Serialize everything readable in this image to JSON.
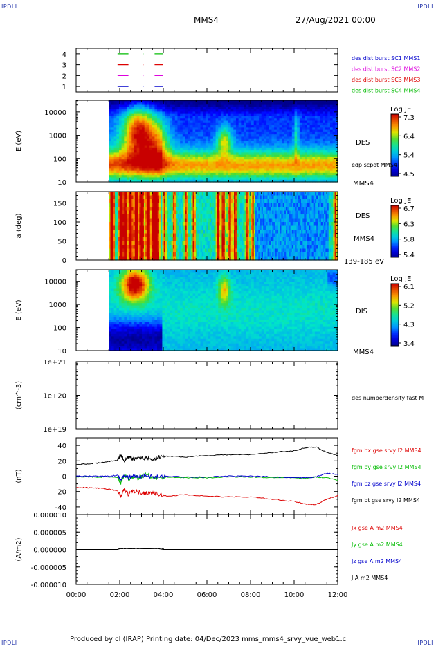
{
  "header": {
    "corner_tl": "IPDLI",
    "corner_tr": "IPDLI",
    "spacecraft": "MMS4",
    "datetime": "27/Aug/2021 00:00"
  },
  "footer": {
    "text": "Produced by cl (IRAP)   Printing date: 04/Dec/2023   mms_mms4_srvy_vue_web1.cl",
    "corner_bl": "IPDLI",
    "corner_br": "IPDLI"
  },
  "colors": {
    "red": "#dd0000",
    "green": "#00bb00",
    "blue": "#0000cc",
    "magenta": "#dd00dd",
    "black": "#000000"
  },
  "chart_data": [
    {
      "panel": "burst-availability",
      "type": "scatter",
      "yticks": [
        "1",
        "2",
        "3",
        "4"
      ],
      "ylim": [
        0.5,
        4.5
      ],
      "legend": [
        {
          "name": "des dist burst SC1 MMS1",
          "color": "#0000cc"
        },
        {
          "name": "des dist burst SC2 MMS2",
          "color": "#dd00dd"
        },
        {
          "name": "des dist burst SC3 MMS3",
          "color": "#dd0000"
        },
        {
          "name": "des dist burst SC4 MMS4",
          "color": "#00bb00"
        }
      ],
      "segments": [
        {
          "level": 4,
          "color": "#00bb00",
          "t": [
            [
              1.9,
              2.4
            ],
            [
              3.6,
              4.0
            ]
          ]
        },
        {
          "level": 3,
          "color": "#dd0000",
          "t": [
            [
              1.9,
              2.4
            ],
            [
              3.6,
              4.0
            ]
          ]
        },
        {
          "level": 2,
          "color": "#dd00dd",
          "t": [
            [
              1.9,
              2.4
            ],
            [
              3.6,
              4.0
            ]
          ]
        },
        {
          "level": 1,
          "color": "#0000cc",
          "t": [
            [
              1.9,
              2.4
            ],
            [
              3.6,
              4.0
            ]
          ]
        }
      ]
    },
    {
      "panel": "des-energy-spectrogram",
      "type": "heatmap",
      "ylabel": "E (eV)",
      "yticks": [
        "10",
        "100",
        "1000",
        "10000"
      ],
      "ylog": [
        1,
        4.5
      ],
      "data_start": 1.5,
      "right_label": "DES",
      "side_labels": [
        "edp scpot MMS4",
        "MMS4"
      ],
      "colorbar": {
        "title": "Log JE",
        "ticks": [
          "7.3",
          "6.4",
          "5.4",
          "4.5"
        ],
        "range": [
          4.5,
          7.3
        ]
      }
    },
    {
      "panel": "des-pitch-angle",
      "type": "heatmap",
      "ylabel": "a (deg)",
      "yticks": [
        "0",
        "50",
        "100",
        "150"
      ],
      "ylim": [
        0,
        180
      ],
      "data_start": 1.5,
      "right_label": "DES",
      "side_labels": [
        "MMS4",
        "139-185 eV"
      ],
      "colorbar": {
        "title": "Log JE",
        "ticks": [
          "6.7",
          "6.3",
          "5.8",
          "5.4"
        ],
        "range": [
          5.4,
          6.7
        ]
      }
    },
    {
      "panel": "dis-energy-spectrogram",
      "type": "heatmap",
      "ylabel": "E (eV)",
      "yticks": [
        "10",
        "100",
        "1000",
        "10000"
      ],
      "ylog": [
        1,
        4.5
      ],
      "data_start": 1.5,
      "right_label": "DIS",
      "side_labels": [
        "MMS4"
      ],
      "colorbar": {
        "title": "Log JE",
        "ticks": [
          "6.1",
          "5.2",
          "4.3",
          "3.4"
        ],
        "range": [
          3.4,
          6.1
        ]
      }
    },
    {
      "panel": "number-density",
      "type": "line",
      "ylabel": "(cm^-3)",
      "yticks": [
        "1e+19",
        "1e+20",
        "1e+21"
      ],
      "ylog": [
        19,
        21
      ],
      "legend": [
        {
          "name": "des numberdensity fast M",
          "color": "#000000"
        }
      ],
      "series": []
    },
    {
      "panel": "magnetic-field",
      "type": "line",
      "ylabel": "(nT)",
      "yticks": [
        "-40",
        "-20",
        "0",
        "20",
        "40"
      ],
      "ylim": [
        -50,
        50
      ],
      "legend": [
        {
          "name": "fgm bx gse srvy l2 MMS4",
          "color": "#dd0000"
        },
        {
          "name": "fgm by gse srvy l2 MMS4",
          "color": "#00bb00"
        },
        {
          "name": "fgm bz gse srvy l2 MMS4",
          "color": "#0000cc"
        },
        {
          "name": "fgm bt gse srvy l2 MMS4",
          "color": "#000000"
        }
      ],
      "x": [
        0,
        0.5,
        1,
        1.5,
        1.9,
        2.05,
        2.2,
        2.4,
        2.6,
        2.9,
        3.2,
        3.5,
        3.8,
        4.2,
        5,
        6,
        7,
        8,
        9,
        10,
        10.5,
        11,
        11.5,
        12
      ],
      "series": [
        {
          "name": "fgm bx gse srvy l2 MMS4",
          "color": "#dd0000",
          "values": [
            -15,
            -15,
            -15.5,
            -17,
            -19,
            -27,
            -17,
            -24,
            -19,
            -21,
            -22,
            -21,
            -24,
            -26,
            -24,
            -26,
            -27,
            -27,
            -30,
            -33,
            -36,
            -37,
            -30,
            -25
          ]
        },
        {
          "name": "fgm by gse srvy l2 MMS4",
          "color": "#00bb00",
          "values": [
            -1,
            -1,
            -1,
            -1,
            -2,
            -9,
            2,
            -4,
            0,
            -2,
            3,
            -2,
            -3,
            -1,
            -2,
            -2,
            -1,
            -1,
            -2,
            -2,
            -3,
            -1,
            -2,
            -5
          ]
        },
        {
          "name": "fgm bz gse srvy l2 MMS4",
          "color": "#0000cc",
          "values": [
            0,
            0,
            0,
            0,
            1,
            -5,
            1,
            -2,
            0,
            -1,
            1,
            -1,
            -1,
            0,
            -1,
            -1,
            0,
            0,
            -1,
            -2,
            -2,
            -1,
            4,
            2
          ]
        },
        {
          "name": "fgm bt gse srvy l2 MMS4",
          "color": "#000000",
          "values": [
            15,
            16,
            17,
            19,
            21,
            28,
            20,
            26,
            22,
            23,
            24,
            22,
            25,
            26,
            25,
            27,
            28,
            28,
            31,
            33,
            37,
            38,
            31,
            27
          ]
        }
      ]
    },
    {
      "panel": "current-density",
      "type": "line",
      "ylabel": "(A/m2)",
      "yticks": [
        "-0.000010",
        "-0.000005",
        "0.000000",
        "0.000005",
        "0.000010"
      ],
      "ylim": [
        -1e-05,
        1e-05
      ],
      "legend": [
        {
          "name": "Jx gse A m2 MMS4",
          "color": "#dd0000"
        },
        {
          "name": "Jy gse A m2 MMS4",
          "color": "#00bb00"
        },
        {
          "name": "Jz gse A m2 MMS4",
          "color": "#0000cc"
        },
        {
          "name": "J A m2 MMS4",
          "color": "#000000"
        }
      ],
      "x": [
        0,
        1.9,
        2.0,
        2.2,
        2.5,
        2.8,
        3.1,
        3.4,
        3.7,
        4.0,
        6,
        12
      ],
      "series": [
        {
          "name": "J A m2 MMS4",
          "color": "#000000",
          "values": [
            0,
            0,
            2e-07,
            3e-07,
            2e-07,
            3e-07,
            2e-07,
            2e-07,
            3e-07,
            0,
            0,
            0
          ]
        }
      ]
    }
  ],
  "time_axis": {
    "ticks": [
      "00:00",
      "02:00",
      "04:00",
      "06:00",
      "08:00",
      "10:00",
      "12:00"
    ],
    "range_hours": [
      0,
      12
    ]
  }
}
